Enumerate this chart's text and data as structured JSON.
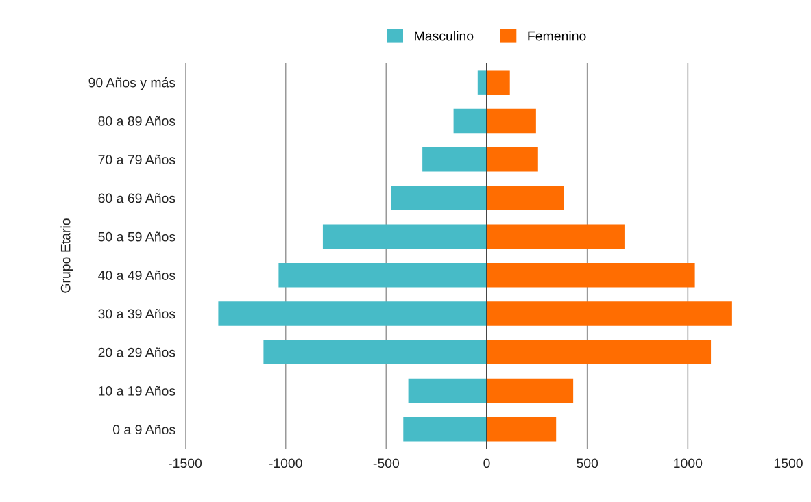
{
  "chart_data": {
    "type": "bar",
    "orientation": "horizontal",
    "stacked": true,
    "ylabel": "Grupo Etario",
    "categories": [
      "90 Años y más",
      "80 a 89 Años",
      "70 a 79 Años",
      "60 a 69 Años",
      "50 a 59 Años",
      "40 a 49 Años",
      "30 a 39 Años",
      "20 a 29 Años",
      "10 a 19 Años",
      "0 a 9 Años"
    ],
    "series": [
      {
        "name": "Masculino",
        "color": "#47bbc7",
        "values": [
          -45,
          -165,
          -320,
          -475,
          -815,
          -1035,
          -1335,
          -1110,
          -390,
          -415
        ]
      },
      {
        "name": "Femenino",
        "color": "#ff6d01",
        "values": [
          115,
          245,
          255,
          385,
          685,
          1035,
          1220,
          1115,
          430,
          345
        ]
      }
    ],
    "xlim": [
      -1500,
      1500
    ],
    "xticks": [
      -1500,
      -1000,
      -500,
      0,
      500,
      1000,
      1500
    ],
    "ref_lines": [
      {
        "axis": "x",
        "value": 0,
        "color": "#333333"
      }
    ],
    "grid": "x",
    "legend": "top"
  }
}
